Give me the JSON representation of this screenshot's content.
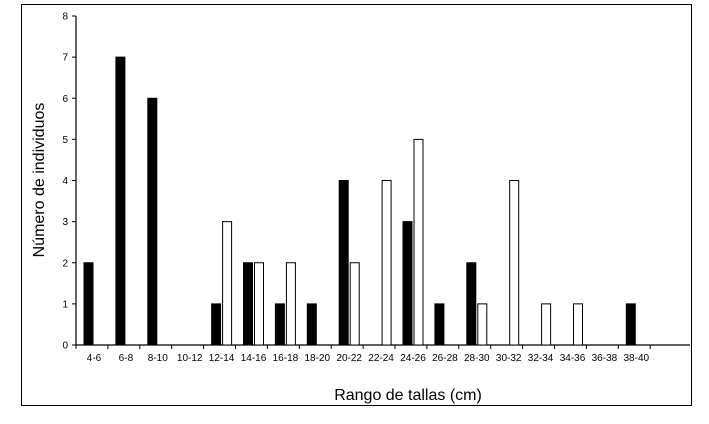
{
  "chart_data": {
    "type": "bar",
    "title": "",
    "xlabel": "Rango de tallas (cm)",
    "ylabel": "Número de individuos",
    "ylim": [
      0,
      8
    ],
    "yticks": [
      0,
      1,
      2,
      3,
      4,
      5,
      6,
      7,
      8
    ],
    "grid": false,
    "categories": [
      "4-6",
      "6-8",
      "8-10",
      "10-12",
      "12-14",
      "14-16",
      "16-18",
      "18-20",
      "20-22",
      "22-24",
      "24-26",
      "26-28",
      "28-30",
      "30-32",
      "32-34",
      "34-36",
      "36-38",
      "38-40"
    ],
    "series": [
      {
        "fill": "#000000",
        "values": [
          2,
          7,
          6,
          0,
          1,
          2,
          1,
          1,
          4,
          0,
          3,
          1,
          2,
          0,
          0,
          0,
          0,
          1
        ]
      },
      {
        "fill": "#ffffff",
        "values": [
          0,
          0,
          0,
          0,
          3,
          2,
          2,
          0,
          2,
          4,
          5,
          0,
          1,
          4,
          1,
          1,
          0,
          0
        ]
      }
    ]
  }
}
